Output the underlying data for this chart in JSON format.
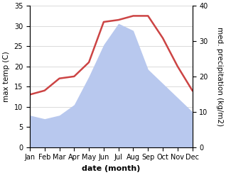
{
  "months": [
    "Jan",
    "Feb",
    "Mar",
    "Apr",
    "May",
    "Jun",
    "Jul",
    "Aug",
    "Sep",
    "Oct",
    "Nov",
    "Dec"
  ],
  "max_temp": [
    13,
    14,
    17,
    17.5,
    21,
    31,
    31.5,
    32.5,
    32.5,
    27,
    20,
    14
  ],
  "precipitation": [
    9,
    8,
    9,
    12,
    20,
    29,
    35,
    33,
    22,
    18,
    14,
    10
  ],
  "temp_color": "#cc4444",
  "precip_color": "#b8c8ee",
  "left_ylabel": "max temp (C)",
  "right_ylabel": "med. precipitation (kg/m2)",
  "xlabel": "date (month)",
  "left_ylim": [
    0,
    35
  ],
  "right_ylim": [
    0,
    40
  ],
  "left_yticks": [
    0,
    5,
    10,
    15,
    20,
    25,
    30,
    35
  ],
  "right_yticks": [
    0,
    10,
    20,
    30,
    40
  ],
  "bg_color": "#ffffff",
  "temp_linewidth": 1.8,
  "xlabel_fontsize": 8,
  "ylabel_fontsize": 7.5,
  "tick_fontsize": 7
}
